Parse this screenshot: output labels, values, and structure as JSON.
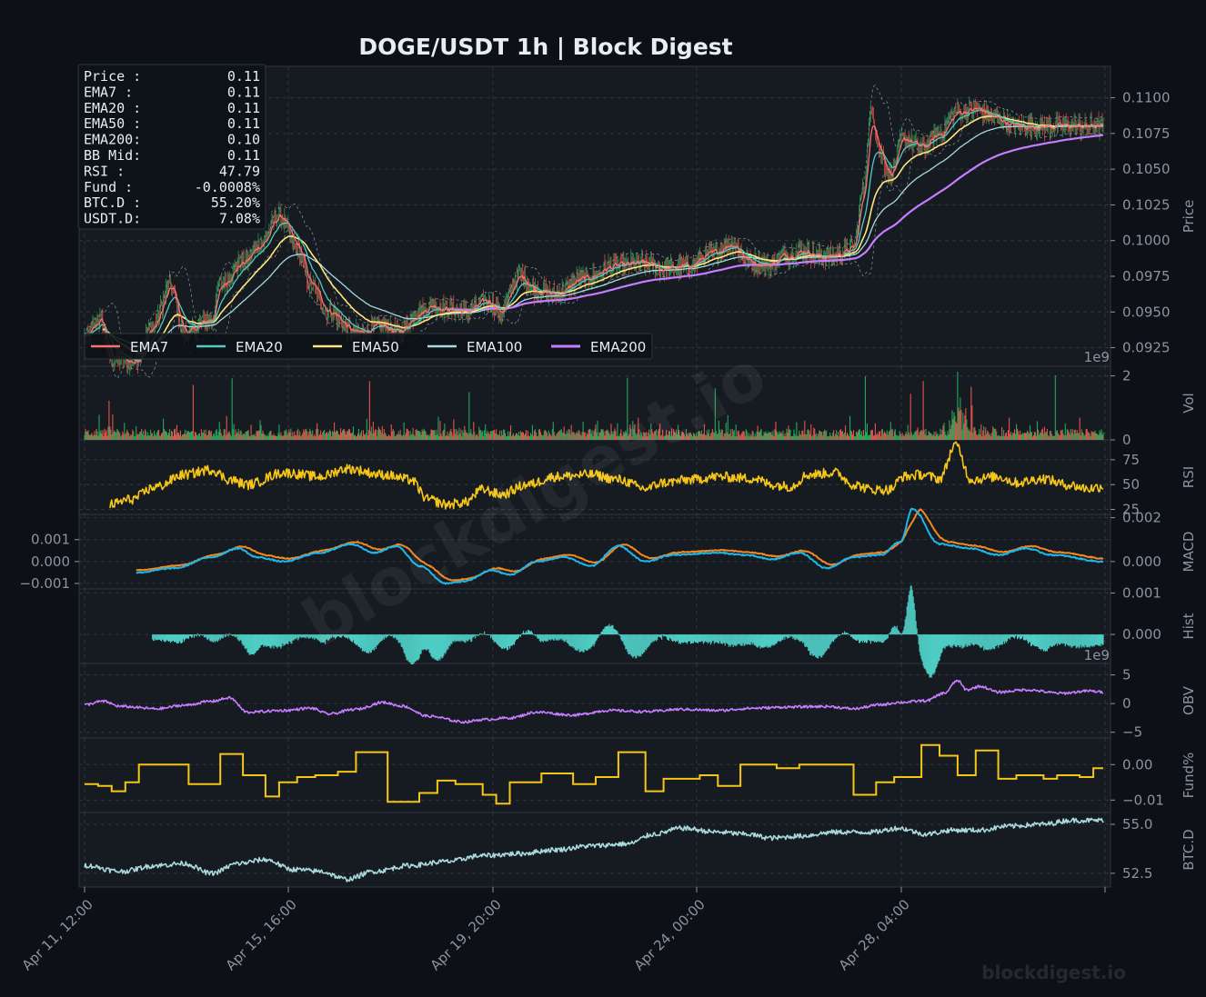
{
  "title": "DOGE/USDT  1h  |  Block Digest",
  "watermark_diag": "blockdigest.io",
  "watermark_corner": "blockdigest.io",
  "colors": {
    "bg": "#0d1117",
    "panel": "#161b22",
    "border": "#30363d",
    "grid": "#30363d",
    "text": "#8b949e",
    "title": "#e6edf3",
    "up": "#26a65b",
    "down": "#e5534b",
    "ema7": "#f87171",
    "ema20": "#4ecdc4",
    "ema50": "#ffe57a",
    "ema100": "#a8dadc",
    "ema200": "#c77dff",
    "rsi": "#f5c518",
    "macd": "#1fb6e8",
    "signal": "#f5871f",
    "hist": "#4ecdc4",
    "obv": "#c77dff",
    "fund": "#f5c518",
    "btcd": "#a8dadc"
  },
  "info_box": [
    {
      "label": "Price :",
      "value": "0.11"
    },
    {
      "label": "EMA7  :",
      "value": "0.11"
    },
    {
      "label": "EMA20 :",
      "value": "0.11"
    },
    {
      "label": "EMA50 :",
      "value": "0.11"
    },
    {
      "label": "EMA200:",
      "value": "0.10"
    },
    {
      "label": "BB Mid:",
      "value": "0.11"
    },
    {
      "label": "RSI   :",
      "value": "47.79"
    },
    {
      "label": "Fund  :",
      "value": "-0.0008%"
    },
    {
      "label": "BTC.D :",
      "value": "55.20%"
    },
    {
      "label": "USDT.D:",
      "value": "7.08%"
    }
  ],
  "legend": [
    "EMA7",
    "EMA20",
    "EMA50",
    "EMA100",
    "EMA200"
  ],
  "x_ticks": [
    "Apr 11, 12:00",
    "Apr 15, 16:00",
    "Apr 19, 20:00",
    "Apr 24, 00:00",
    "Apr 28, 04:00"
  ],
  "panels": {
    "price": {
      "ylabel": "Price",
      "ticks": [
        "0.0925",
        "0.0950",
        "0.0975",
        "0.1000",
        "0.1025",
        "0.1050",
        "0.1075",
        "0.1100"
      ],
      "ylim": [
        0.0912,
        0.1122
      ]
    },
    "volume": {
      "ylabel": "Vol",
      "ticks": [
        "0",
        "2"
      ],
      "exponent": "1e9"
    },
    "rsi": {
      "ylabel": "RSI",
      "ticks": [
        "25",
        "50",
        "75"
      ]
    },
    "macd": {
      "ylabel": "MACD",
      "ticks_right": [
        "0.000",
        "0.002"
      ],
      "ticks_left": [
        "0.001",
        "0.000",
        "−0.001"
      ]
    },
    "hist": {
      "ylabel": "Hist",
      "ticks": [
        "0.000",
        "0.001"
      ],
      "exponent": "1e9"
    },
    "obv": {
      "ylabel": "OBV",
      "ticks": [
        "−5",
        "0",
        "5"
      ]
    },
    "fund": {
      "ylabel": "Fund%",
      "ticks": [
        "−0.01",
        "0.00"
      ]
    },
    "btcd": {
      "ylabel": "BTC.D",
      "ticks": [
        "52.5",
        "55.0"
      ]
    }
  },
  "chart_data": {
    "type": "line",
    "x_range": [
      "Apr 11, 12:00",
      "Apr 30, 12:00"
    ],
    "price_anchors": [
      [
        0,
        0.0932
      ],
      [
        18,
        0.0945
      ],
      [
        28,
        0.0918
      ],
      [
        55,
        0.0915
      ],
      [
        75,
        0.094
      ],
      [
        95,
        0.0968
      ],
      [
        110,
        0.0935
      ],
      [
        140,
        0.0945
      ],
      [
        150,
        0.097
      ],
      [
        175,
        0.0985
      ],
      [
        195,
        0.0998
      ],
      [
        215,
        0.1018
      ],
      [
        235,
        0.0995
      ],
      [
        250,
        0.0968
      ],
      [
        270,
        0.095
      ],
      [
        300,
        0.0935
      ],
      [
        330,
        0.094
      ],
      [
        345,
        0.0935
      ],
      [
        370,
        0.095
      ],
      [
        385,
        0.0955
      ],
      [
        400,
        0.0952
      ],
      [
        420,
        0.095
      ],
      [
        445,
        0.0958
      ],
      [
        460,
        0.095
      ],
      [
        480,
        0.0975
      ],
      [
        500,
        0.0965
      ],
      [
        520,
        0.0962
      ],
      [
        550,
        0.0973
      ],
      [
        585,
        0.0982
      ],
      [
        615,
        0.0984
      ],
      [
        640,
        0.098
      ],
      [
        665,
        0.0982
      ],
      [
        690,
        0.099
      ],
      [
        715,
        0.0998
      ],
      [
        735,
        0.0985
      ],
      [
        755,
        0.0983
      ],
      [
        775,
        0.099
      ],
      [
        795,
        0.0993
      ],
      [
        815,
        0.0988
      ],
      [
        830,
        0.099
      ],
      [
        850,
        0.0995
      ],
      [
        860,
        0.1035
      ],
      [
        870,
        0.109
      ],
      [
        880,
        0.106
      ],
      [
        890,
        0.1045
      ],
      [
        905,
        0.1072
      ],
      [
        925,
        0.1065
      ],
      [
        945,
        0.1075
      ],
      [
        965,
        0.109
      ],
      [
        985,
        0.1092
      ],
      [
        1010,
        0.1085
      ],
      [
        1026,
        0.108
      ]
    ],
    "rsi_anchors": [
      [
        28,
        30
      ],
      [
        50,
        35
      ],
      [
        80,
        48
      ],
      [
        110,
        60
      ],
      [
        140,
        65
      ],
      [
        160,
        55
      ],
      [
        180,
        50
      ],
      [
        220,
        62
      ],
      [
        260,
        58
      ],
      [
        290,
        66
      ],
      [
        330,
        60
      ],
      [
        360,
        55
      ],
      [
        380,
        35
      ],
      [
        400,
        30
      ],
      [
        420,
        32
      ],
      [
        440,
        45
      ],
      [
        460,
        40
      ],
      [
        490,
        50
      ],
      [
        520,
        58
      ],
      [
        560,
        60
      ],
      [
        590,
        55
      ],
      [
        620,
        46
      ],
      [
        640,
        52
      ],
      [
        670,
        55
      ],
      [
        700,
        58
      ],
      [
        740,
        56
      ],
      [
        760,
        50
      ],
      [
        780,
        48
      ],
      [
        800,
        60
      ],
      [
        830,
        62
      ],
      [
        850,
        50
      ],
      [
        870,
        45
      ],
      [
        890,
        45
      ],
      [
        905,
        58
      ],
      [
        925,
        60
      ],
      [
        945,
        56
      ],
      [
        963,
        90
      ],
      [
        980,
        55
      ],
      [
        1010,
        58
      ],
      [
        1030,
        52
      ],
      [
        1060,
        56
      ],
      [
        1085,
        50
      ],
      [
        1110,
        46
      ],
      [
        1126,
        48
      ]
    ],
    "macd_anchors": [
      [
        57,
        -0.0005
      ],
      [
        100,
        -0.0003
      ],
      [
        140,
        0.0002
      ],
      [
        170,
        0.0006
      ],
      [
        190,
        0.0002
      ],
      [
        220,
        0.0
      ],
      [
        260,
        0.0004
      ],
      [
        295,
        0.0008
      ],
      [
        320,
        0.0004
      ],
      [
        345,
        0.0007
      ],
      [
        370,
        -0.0002
      ],
      [
        400,
        -0.001
      ],
      [
        420,
        -0.0009
      ],
      [
        450,
        -0.0004
      ],
      [
        470,
        -0.0006
      ],
      [
        500,
        0.0
      ],
      [
        530,
        0.0002
      ],
      [
        560,
        -0.0002
      ],
      [
        590,
        0.0007
      ],
      [
        620,
        0.0
      ],
      [
        650,
        0.0003
      ],
      [
        700,
        0.0004
      ],
      [
        730,
        0.0003
      ],
      [
        760,
        0.0001
      ],
      [
        790,
        0.0004
      ],
      [
        820,
        -0.0003
      ],
      [
        850,
        0.0002
      ],
      [
        880,
        0.0003
      ],
      [
        902,
        0.0009
      ],
      [
        915,
        0.0024
      ],
      [
        945,
        0.0008
      ],
      [
        980,
        0.0006
      ],
      [
        1010,
        0.0003
      ],
      [
        1040,
        0.0006
      ],
      [
        1070,
        0.0003
      ],
      [
        1126,
        0.0
      ]
    ],
    "signal_lag": 10,
    "obv_anchors": [
      [
        0,
        -0.2
      ],
      [
        20,
        0.4
      ],
      [
        40,
        -0.5
      ],
      [
        80,
        -0.9
      ],
      [
        110,
        -0.3
      ],
      [
        140,
        0.4
      ],
      [
        160,
        1.0
      ],
      [
        180,
        -1.5
      ],
      [
        220,
        -1.2
      ],
      [
        250,
        -0.8
      ],
      [
        270,
        -1.8
      ],
      [
        300,
        -1.0
      ],
      [
        330,
        0.2
      ],
      [
        350,
        -0.4
      ],
      [
        380,
        -2.2
      ],
      [
        420,
        -3.2
      ],
      [
        440,
        -2.8
      ],
      [
        470,
        -2.5
      ],
      [
        500,
        -1.5
      ],
      [
        540,
        -2.0
      ],
      [
        580,
        -1.2
      ],
      [
        620,
        -1.4
      ],
      [
        660,
        -1.0
      ],
      [
        700,
        -1.2
      ],
      [
        740,
        -0.8
      ],
      [
        780,
        -0.6
      ],
      [
        820,
        -0.5
      ],
      [
        850,
        -0.9
      ],
      [
        880,
        -0.2
      ],
      [
        900,
        0.2
      ],
      [
        930,
        0.5
      ],
      [
        950,
        1.8
      ],
      [
        965,
        4.0
      ],
      [
        975,
        2.4
      ],
      [
        990,
        3.0
      ],
      [
        1010,
        2.0
      ],
      [
        1040,
        2.4
      ],
      [
        1080,
        1.8
      ],
      [
        1110,
        2.2
      ],
      [
        1126,
        2.0
      ]
    ],
    "fund_steps": [
      [
        0,
        -0.0055
      ],
      [
        15,
        -0.006
      ],
      [
        30,
        -0.0075
      ],
      [
        45,
        -0.005
      ],
      [
        60,
        0.0
      ],
      [
        70,
        0.0
      ],
      [
        115,
        -0.0055
      ],
      [
        150,
        0.003
      ],
      [
        175,
        -0.003
      ],
      [
        200,
        -0.009
      ],
      [
        215,
        -0.005
      ],
      [
        235,
        -0.0035
      ],
      [
        255,
        -0.003
      ],
      [
        280,
        -0.002
      ],
      [
        300,
        0.0035
      ],
      [
        335,
        -0.0105
      ],
      [
        370,
        -0.008
      ],
      [
        390,
        -0.0045
      ],
      [
        410,
        -0.0055
      ],
      [
        440,
        -0.0085
      ],
      [
        455,
        -0.011
      ],
      [
        470,
        -0.005
      ],
      [
        505,
        -0.0025
      ],
      [
        540,
        -0.0055
      ],
      [
        565,
        -0.0035
      ],
      [
        590,
        0.0035
      ],
      [
        620,
        -0.0075
      ],
      [
        640,
        -0.004
      ],
      [
        680,
        -0.003
      ],
      [
        700,
        -0.006
      ],
      [
        725,
        0.0
      ],
      [
        765,
        -0.001
      ],
      [
        790,
        0.0
      ],
      [
        850,
        -0.0085
      ],
      [
        875,
        -0.005
      ],
      [
        895,
        -0.0035
      ],
      [
        925,
        0.0055
      ],
      [
        945,
        0.0025
      ],
      [
        965,
        -0.003
      ],
      [
        985,
        0.004
      ],
      [
        1010,
        -0.004
      ],
      [
        1030,
        -0.003
      ],
      [
        1060,
        -0.004
      ],
      [
        1075,
        -0.003
      ],
      [
        1100,
        -0.0035
      ],
      [
        1115,
        -0.001
      ]
    ],
    "btcd_anchors": [
      [
        0,
        52.9
      ],
      [
        40,
        52.6
      ],
      [
        80,
        52.9
      ],
      [
        110,
        53.0
      ],
      [
        140,
        52.5
      ],
      [
        170,
        53.0
      ],
      [
        200,
        53.2
      ],
      [
        230,
        52.7
      ],
      [
        260,
        52.6
      ],
      [
        290,
        52.2
      ],
      [
        320,
        52.6
      ],
      [
        360,
        52.9
      ],
      [
        400,
        53.1
      ],
      [
        440,
        53.4
      ],
      [
        480,
        53.5
      ],
      [
        520,
        53.7
      ],
      [
        560,
        53.9
      ],
      [
        600,
        54.0
      ],
      [
        630,
        54.5
      ],
      [
        660,
        54.8
      ],
      [
        700,
        54.6
      ],
      [
        730,
        54.5
      ],
      [
        760,
        54.3
      ],
      [
        790,
        54.4
      ],
      [
        830,
        54.6
      ],
      [
        870,
        54.6
      ],
      [
        900,
        54.8
      ],
      [
        930,
        54.5
      ],
      [
        960,
        54.7
      ],
      [
        990,
        54.7
      ],
      [
        1020,
        54.9
      ],
      [
        1060,
        55.0
      ],
      [
        1090,
        55.2
      ],
      [
        1126,
        55.2
      ]
    ],
    "volume_spike_indices": [
      27,
      120,
      163,
      315,
      425,
      600,
      697,
      863,
      913,
      927,
      965,
      980,
      1073
    ]
  }
}
